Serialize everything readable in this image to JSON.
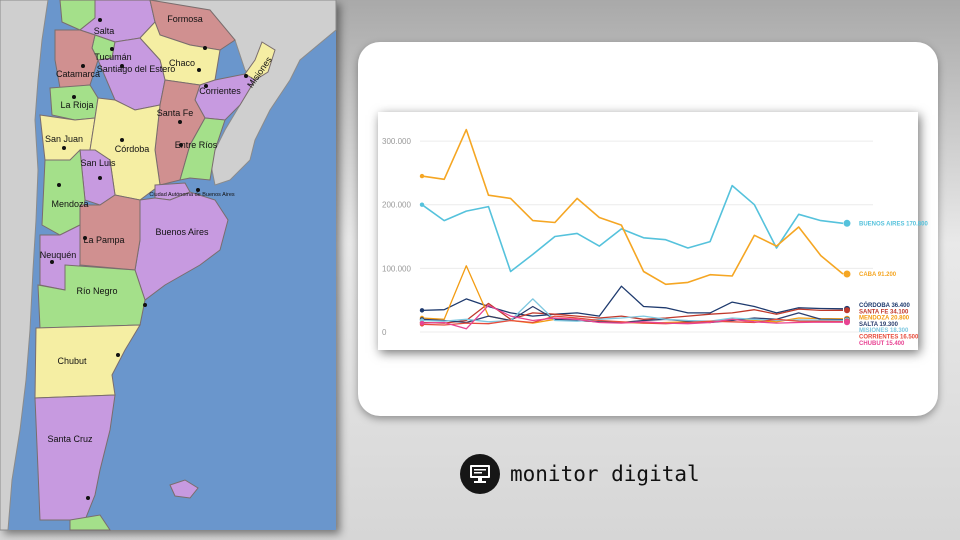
{
  "map": {
    "provinces": [
      {
        "label": "Salta"
      },
      {
        "label": "Formosa"
      },
      {
        "label": "Tucumán"
      },
      {
        "label": "Chaco"
      },
      {
        "label": "Misiones"
      },
      {
        "label": "Catamarca"
      },
      {
        "label": "Santiago del Estero"
      },
      {
        "label": "Corrientes"
      },
      {
        "label": "La Rioja"
      },
      {
        "label": "Santa Fe"
      },
      {
        "label": "San Juan"
      },
      {
        "label": "Córdoba"
      },
      {
        "label": "Entre Ríos"
      },
      {
        "label": "San Luis"
      },
      {
        "label": "Mendoza"
      },
      {
        "label": "Ciudad Autónoma de Buenos Aires"
      },
      {
        "label": "Buenos Aires"
      },
      {
        "label": "La Pampa"
      },
      {
        "label": "Neuquén"
      },
      {
        "label": "Río Negro"
      },
      {
        "label": "Chubut"
      },
      {
        "label": "Santa Cruz"
      }
    ],
    "colors": {
      "water": "#6a96cc",
      "land": "#cfcfcf",
      "purple": "#c79ae0",
      "green": "#a4e08a",
      "yellow": "#f5eea3",
      "red": "#d09090"
    }
  },
  "brand": {
    "name": "monitor digital",
    "logo_icon": "monitor-icon"
  },
  "chart_data": {
    "type": "line",
    "title": "",
    "xlabel": "",
    "ylabel": "",
    "ylim": [
      0,
      330000
    ],
    "yticks": [
      0,
      100000,
      200000,
      300000
    ],
    "ytick_labels": [
      "0",
      "100.000",
      "200.000",
      "300.000"
    ],
    "grid": true,
    "legend": "right-end labels",
    "x": [
      1,
      2,
      3,
      4,
      5,
      6,
      7,
      8,
      9,
      10,
      11,
      12,
      13,
      14,
      15,
      16,
      17,
      18,
      19,
      20
    ],
    "series": [
      {
        "name": "BUENOS AIRES",
        "end_label": "BUENOS AIRES 170.800",
        "color": "#55c2dc",
        "values": [
          200000,
          175000,
          190000,
          197000,
          95000,
          122000,
          150000,
          155000,
          135000,
          162000,
          148000,
          145000,
          132000,
          142000,
          230000,
          200000,
          132000,
          185000,
          175000,
          170800
        ]
      },
      {
        "name": "CABA",
        "end_label": "CABA 91.200",
        "color": "#f5a623",
        "values": [
          245000,
          240000,
          318000,
          215000,
          210000,
          175000,
          172000,
          210000,
          180000,
          168000,
          95000,
          75000,
          78000,
          90000,
          88000,
          152000,
          135000,
          165000,
          120000,
          91200
        ]
      },
      {
        "name": "CÓRDOBA",
        "end_label": "CÓRDOBA 36.400",
        "color": "#1e3a6e",
        "values": [
          34000,
          35000,
          52000,
          40000,
          30000,
          25000,
          28000,
          30000,
          25000,
          72000,
          40000,
          38000,
          30000,
          30000,
          47000,
          40000,
          30000,
          38000,
          37000,
          36400
        ]
      },
      {
        "name": "SANTA FE",
        "end_label": "SANTA FE 34.100",
        "color": "#c0392b",
        "values": [
          15000,
          14000,
          18000,
          45000,
          20000,
          30000,
          28000,
          25000,
          22000,
          25000,
          20000,
          22000,
          25000,
          28000,
          30000,
          35000,
          28000,
          36000,
          34000,
          34100
        ]
      },
      {
        "name": "MENDOZA",
        "end_label": "MENDOZA 20.800",
        "color": "#f39c12",
        "values": [
          22000,
          20000,
          104000,
          25000,
          18000,
          14000,
          20000,
          18000,
          16000,
          15000,
          14000,
          15000,
          16000,
          15000,
          20000,
          18000,
          16000,
          22000,
          21000,
          20800
        ]
      },
      {
        "name": "SALTA",
        "end_label": "SALTA 19.300",
        "color": "#2c3e6e",
        "values": [
          20000,
          18000,
          15000,
          25000,
          18000,
          40000,
          20000,
          18000,
          16000,
          15000,
          18000,
          20000,
          17000,
          15000,
          18000,
          22000,
          20000,
          30000,
          20000,
          19300
        ]
      },
      {
        "name": "MISIONES",
        "end_label": "MISIONES 18.300",
        "color": "#7fc8e0",
        "values": [
          18000,
          17000,
          20000,
          16000,
          18000,
          52000,
          18000,
          17000,
          20000,
          22000,
          25000,
          20000,
          18000,
          17000,
          22000,
          20000,
          18000,
          19000,
          18500,
          18300
        ]
      },
      {
        "name": "CORRIENTES",
        "end_label": "CORRIENTES 16.500",
        "color": "#e74c3c",
        "values": [
          12000,
          11000,
          14000,
          13000,
          18000,
          15000,
          25000,
          22000,
          18000,
          16000,
          14000,
          13000,
          15000,
          17000,
          16000,
          15000,
          20000,
          17000,
          16800,
          16500
        ]
      },
      {
        "name": "CHUBUT",
        "end_label": "CHUBUT 15.400",
        "color": "#e84393",
        "values": [
          14000,
          15000,
          5000,
          42000,
          25000,
          18000,
          22000,
          20000,
          15000,
          14000,
          16000,
          14000,
          13000,
          15000,
          20000,
          16000,
          14000,
          15000,
          15500,
          15400
        ]
      }
    ]
  }
}
